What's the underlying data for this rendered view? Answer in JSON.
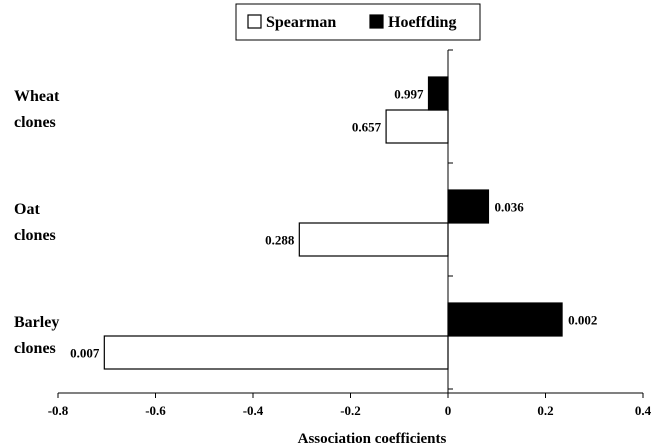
{
  "chart_data": {
    "type": "bar",
    "orientation": "horizontal",
    "title": "",
    "xlabel": "Association coefficients",
    "ylabel": "",
    "xlim": [
      -0.8,
      0.4
    ],
    "xticks": [
      -0.8,
      -0.6,
      -0.4,
      -0.2,
      0,
      0.2,
      0.4
    ],
    "xtick_labels": [
      "-0.8",
      "-0.6",
      "-0.4",
      "-0.2",
      "0",
      "0.2",
      "0.4"
    ],
    "grid": false,
    "legend_position": "top-center",
    "categories": [
      {
        "line1": "Wheat",
        "line2": "clones"
      },
      {
        "line1": "Oat",
        "line2": "clones"
      },
      {
        "line1": "Barley",
        "line2": "clones"
      }
    ],
    "series": [
      {
        "name": "Spearman",
        "fill": "#ffffff",
        "stroke": "#000000",
        "values": [
          -0.127,
          -0.305,
          -0.705
        ],
        "labels": [
          "0.657",
          "0.288",
          "0.007"
        ]
      },
      {
        "name": "Hoeffding",
        "fill": "#000000",
        "stroke": "#000000",
        "values": [
          -0.04,
          0.083,
          0.234
        ],
        "labels": [
          "0.997",
          "0.036",
          "0.002"
        ]
      }
    ]
  }
}
